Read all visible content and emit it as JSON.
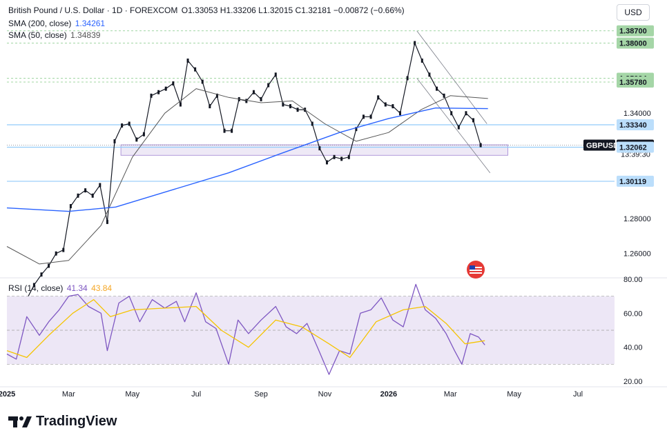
{
  "legend": {
    "symbol": "British Pound / U.S. Dollar · 1D · FOREXCOM",
    "ohlc": "O1.33053 H1.33206 L1.32015 C1.32181 −0.00872 (−0.66%)",
    "sma200_label": "SMA (200, close)",
    "sma200_value": "1.34261",
    "sma50_label": "SMA (50, close)",
    "sma50_value": "1.34839",
    "rsi_label": "RSI (14, close)",
    "rsi_value": "41.34",
    "rsi_ma_value": "43.84"
  },
  "currency_button": "USD",
  "logo_text": "TradingView",
  "colors": {
    "up": "#131722",
    "down": "#131722",
    "sma200": "#2962ff",
    "sma50": "#555555",
    "rsi": "#7e57c2",
    "rsi_ma": "#f5c400",
    "green_label": "#a5d6a7",
    "blue_label": "#bbdefb",
    "symbol_label": "#131722",
    "zone_fill": "#ede7f6"
  },
  "chart_data": {
    "type": "candlestick",
    "symbol": "GBPUSD",
    "y_axis": {
      "ticks": [
        1.26,
        1.28,
        1.3,
        1.32,
        1.34,
        1.36,
        1.38
      ],
      "tick_labels": [
        "1.26000",
        "1.28000",
        "",
        "",
        "1.34000",
        "",
        ""
      ]
    },
    "x_axis": {
      "ticks": [
        {
          "date": "2025-01-01",
          "label": "2025"
        },
        {
          "date": "2025-03-01",
          "label": "Mar"
        },
        {
          "date": "2025-05-01",
          "label": "May"
        },
        {
          "date": "2025-07-01",
          "label": "Jul"
        },
        {
          "date": "2025-09-01",
          "label": "Sep"
        },
        {
          "date": "2025-11-01",
          "label": "Nov"
        },
        {
          "date": "2026-01-01",
          "label": "2026"
        },
        {
          "date": "2026-03-01",
          "label": "Mar"
        },
        {
          "date": "2026-05-01",
          "label": "May"
        },
        {
          "date": "2026-07-01",
          "label": "Jul"
        }
      ],
      "range": [
        "2025-01-01",
        "2026-08-05"
      ]
    },
    "price_ylim": [
      1.2465,
      1.392
    ],
    "price_series": [
      {
        "date": "2025-01-13",
        "close": 1.22
      },
      {
        "date": "2025-01-20",
        "close": 1.234
      },
      {
        "date": "2025-01-27",
        "close": 1.242
      },
      {
        "date": "2025-02-03",
        "close": 1.248
      },
      {
        "date": "2025-02-10",
        "close": 1.253
      },
      {
        "date": "2025-02-17",
        "close": 1.26
      },
      {
        "date": "2025-02-24",
        "close": 1.262
      },
      {
        "date": "2025-03-03",
        "close": 1.287
      },
      {
        "date": "2025-03-10",
        "close": 1.293
      },
      {
        "date": "2025-03-17",
        "close": 1.296
      },
      {
        "date": "2025-03-24",
        "close": 1.293
      },
      {
        "date": "2025-03-31",
        "close": 1.299
      },
      {
        "date": "2025-04-07",
        "close": 1.278
      },
      {
        "date": "2025-04-14",
        "close": 1.324
      },
      {
        "date": "2025-04-21",
        "close": 1.333
      },
      {
        "date": "2025-04-28",
        "close": 1.334
      },
      {
        "date": "2025-05-05",
        "close": 1.325
      },
      {
        "date": "2025-05-12",
        "close": 1.328
      },
      {
        "date": "2025-05-19",
        "close": 1.35
      },
      {
        "date": "2025-05-26",
        "close": 1.352
      },
      {
        "date": "2025-06-02",
        "close": 1.354
      },
      {
        "date": "2025-06-09",
        "close": 1.357
      },
      {
        "date": "2025-06-16",
        "close": 1.345
      },
      {
        "date": "2025-06-23",
        "close": 1.37
      },
      {
        "date": "2025-06-30",
        "close": 1.365
      },
      {
        "date": "2025-07-07",
        "close": 1.358
      },
      {
        "date": "2025-07-14",
        "close": 1.344
      },
      {
        "date": "2025-07-21",
        "close": 1.35
      },
      {
        "date": "2025-07-28",
        "close": 1.33
      },
      {
        "date": "2025-08-04",
        "close": 1.33
      },
      {
        "date": "2025-08-11",
        "close": 1.348
      },
      {
        "date": "2025-08-18",
        "close": 1.347
      },
      {
        "date": "2025-08-25",
        "close": 1.352
      },
      {
        "date": "2025-09-01",
        "close": 1.348
      },
      {
        "date": "2025-09-08",
        "close": 1.356
      },
      {
        "date": "2025-09-15",
        "close": 1.362
      },
      {
        "date": "2025-09-22",
        "close": 1.345
      },
      {
        "date": "2025-09-29",
        "close": 1.344
      },
      {
        "date": "2025-10-06",
        "close": 1.342
      },
      {
        "date": "2025-10-13",
        "close": 1.342
      },
      {
        "date": "2025-10-20",
        "close": 1.334
      },
      {
        "date": "2025-10-27",
        "close": 1.32
      },
      {
        "date": "2025-11-03",
        "close": 1.312
      },
      {
        "date": "2025-11-10",
        "close": 1.315
      },
      {
        "date": "2025-11-17",
        "close": 1.314
      },
      {
        "date": "2025-11-24",
        "close": 1.315
      },
      {
        "date": "2025-12-01",
        "close": 1.331
      },
      {
        "date": "2025-12-08",
        "close": 1.338
      },
      {
        "date": "2025-12-15",
        "close": 1.338
      },
      {
        "date": "2025-12-22",
        "close": 1.349
      },
      {
        "date": "2025-12-29",
        "close": 1.345
      },
      {
        "date": "2026-01-05",
        "close": 1.344
      },
      {
        "date": "2026-01-12",
        "close": 1.34
      },
      {
        "date": "2026-01-19",
        "close": 1.36
      },
      {
        "date": "2026-01-26",
        "close": 1.38
      },
      {
        "date": "2026-02-02",
        "close": 1.37
      },
      {
        "date": "2026-02-09",
        "close": 1.362
      },
      {
        "date": "2026-02-16",
        "close": 1.354
      },
      {
        "date": "2026-02-23",
        "close": 1.35
      },
      {
        "date": "2026-03-02",
        "close": 1.34
      },
      {
        "date": "2026-03-09",
        "close": 1.332
      },
      {
        "date": "2026-03-16",
        "close": 1.34
      },
      {
        "date": "2026-03-23",
        "close": 1.336
      },
      {
        "date": "2026-03-30",
        "close": 1.3218
      }
    ],
    "sma200": {
      "name": "SMA (200, close)",
      "points": [
        {
          "date": "2025-01-01",
          "value": 1.286
        },
        {
          "date": "2025-03-01",
          "value": 1.284
        },
        {
          "date": "2025-04-15",
          "value": 1.2865
        },
        {
          "date": "2025-06-01",
          "value": 1.295
        },
        {
          "date": "2025-08-01",
          "value": 1.306
        },
        {
          "date": "2025-09-20",
          "value": 1.317
        },
        {
          "date": "2025-11-15",
          "value": 1.329
        },
        {
          "date": "2026-01-01",
          "value": 1.337
        },
        {
          "date": "2026-02-15",
          "value": 1.343
        },
        {
          "date": "2026-04-06",
          "value": 1.3426
        }
      ]
    },
    "sma50": {
      "name": "SMA (50, close)",
      "points": [
        {
          "date": "2025-01-01",
          "value": 1.264
        },
        {
          "date": "2025-02-01",
          "value": 1.254
        },
        {
          "date": "2025-03-01",
          "value": 1.256
        },
        {
          "date": "2025-04-01",
          "value": 1.276
        },
        {
          "date": "2025-05-01",
          "value": 1.315
        },
        {
          "date": "2025-06-01",
          "value": 1.34
        },
        {
          "date": "2025-07-01",
          "value": 1.354
        },
        {
          "date": "2025-08-01",
          "value": 1.349
        },
        {
          "date": "2025-09-01",
          "value": 1.346
        },
        {
          "date": "2025-10-01",
          "value": 1.347
        },
        {
          "date": "2025-11-01",
          "value": 1.334
        },
        {
          "date": "2025-12-01",
          "value": 1.324
        },
        {
          "date": "2026-01-01",
          "value": 1.329
        },
        {
          "date": "2026-02-01",
          "value": 1.342
        },
        {
          "date": "2026-03-01",
          "value": 1.35
        },
        {
          "date": "2026-04-06",
          "value": 1.3484
        }
      ]
    },
    "levels": [
      {
        "value": 1.387,
        "label": "1.38700",
        "style": "green"
      },
      {
        "value": 1.38,
        "label": "1.38000",
        "style": "green"
      },
      {
        "value": 1.35994,
        "label": "1.35994",
        "style": "green"
      },
      {
        "value": 1.3578,
        "label": "1.35780",
        "style": "green"
      },
      {
        "value": 1.3334,
        "label": "1.33340",
        "style": "blue"
      },
      {
        "value": 1.32181,
        "label": "1.32181",
        "style": "symbol",
        "name": "GBPUSD",
        "countdown": "13:39:30"
      },
      {
        "value": 1.32062,
        "label": "1.32062",
        "style": "blue"
      },
      {
        "value": 1.30119,
        "label": "1.30119",
        "style": "blue"
      }
    ],
    "support_zone": {
      "from": "2025-04-20",
      "to": "2026-04-25",
      "low": 1.316,
      "high": 1.322
    },
    "channel": {
      "upper": [
        {
          "date": "2026-01-28",
          "value": 1.387
        },
        {
          "date": "2026-04-05",
          "value": 1.334
        }
      ],
      "lower": [
        {
          "date": "2026-01-28",
          "value": 1.36
        },
        {
          "date": "2026-04-08",
          "value": 1.306
        }
      ]
    },
    "rsi": {
      "name": "RSI (14, close)",
      "ylim": [
        20,
        80
      ],
      "ticks": [
        {
          "value": 80,
          "label": "80.00"
        },
        {
          "value": 60,
          "label": "60.00"
        },
        {
          "value": 40,
          "label": "40.00"
        },
        {
          "value": 20,
          "label": "20.00"
        }
      ],
      "bands": [
        70,
        50,
        30
      ],
      "points": [
        {
          "date": "2025-01-01",
          "value": 36
        },
        {
          "date": "2025-01-10",
          "value": 33
        },
        {
          "date": "2025-01-20",
          "value": 58
        },
        {
          "date": "2025-02-01",
          "value": 47
        },
        {
          "date": "2025-02-10",
          "value": 55
        },
        {
          "date": "2025-02-20",
          "value": 62
        },
        {
          "date": "2025-03-01",
          "value": 70
        },
        {
          "date": "2025-03-10",
          "value": 71
        },
        {
          "date": "2025-03-20",
          "value": 64
        },
        {
          "date": "2025-04-01",
          "value": 60
        },
        {
          "date": "2025-04-07",
          "value": 38
        },
        {
          "date": "2025-04-18",
          "value": 66
        },
        {
          "date": "2025-04-28",
          "value": 70
        },
        {
          "date": "2025-05-08",
          "value": 55
        },
        {
          "date": "2025-05-20",
          "value": 68
        },
        {
          "date": "2025-06-01",
          "value": 63
        },
        {
          "date": "2025-06-12",
          "value": 67
        },
        {
          "date": "2025-06-20",
          "value": 55
        },
        {
          "date": "2025-07-01",
          "value": 72
        },
        {
          "date": "2025-07-10",
          "value": 55
        },
        {
          "date": "2025-07-20",
          "value": 51
        },
        {
          "date": "2025-08-01",
          "value": 30
        },
        {
          "date": "2025-08-10",
          "value": 56
        },
        {
          "date": "2025-08-20",
          "value": 48
        },
        {
          "date": "2025-09-01",
          "value": 56
        },
        {
          "date": "2025-09-15",
          "value": 64
        },
        {
          "date": "2025-09-25",
          "value": 52
        },
        {
          "date": "2025-10-05",
          "value": 48
        },
        {
          "date": "2025-10-15",
          "value": 54
        },
        {
          "date": "2025-10-25",
          "value": 40
        },
        {
          "date": "2025-11-05",
          "value": 24
        },
        {
          "date": "2025-11-15",
          "value": 38
        },
        {
          "date": "2025-11-25",
          "value": 36
        },
        {
          "date": "2025-12-05",
          "value": 60
        },
        {
          "date": "2025-12-15",
          "value": 62
        },
        {
          "date": "2025-12-25",
          "value": 69
        },
        {
          "date": "2026-01-05",
          "value": 56
        },
        {
          "date": "2026-01-15",
          "value": 52
        },
        {
          "date": "2026-01-27",
          "value": 77
        },
        {
          "date": "2026-02-05",
          "value": 62
        },
        {
          "date": "2026-02-15",
          "value": 57
        },
        {
          "date": "2026-02-25",
          "value": 48
        },
        {
          "date": "2026-03-05",
          "value": 38
        },
        {
          "date": "2026-03-12",
          "value": 30
        },
        {
          "date": "2026-03-20",
          "value": 48
        },
        {
          "date": "2026-03-28",
          "value": 46
        },
        {
          "date": "2026-04-03",
          "value": 41.34
        }
      ]
    },
    "rsi_ma": {
      "name": "RSI-based MA",
      "points": [
        {
          "date": "2025-01-01",
          "value": 38
        },
        {
          "date": "2025-01-20",
          "value": 34
        },
        {
          "date": "2025-02-10",
          "value": 47
        },
        {
          "date": "2025-03-05",
          "value": 60
        },
        {
          "date": "2025-03-25",
          "value": 68
        },
        {
          "date": "2025-04-10",
          "value": 58
        },
        {
          "date": "2025-05-01",
          "value": 62
        },
        {
          "date": "2025-06-01",
          "value": 63
        },
        {
          "date": "2025-07-01",
          "value": 64
        },
        {
          "date": "2025-07-25",
          "value": 50
        },
        {
          "date": "2025-08-20",
          "value": 40
        },
        {
          "date": "2025-09-15",
          "value": 56
        },
        {
          "date": "2025-10-10",
          "value": 52
        },
        {
          "date": "2025-11-05",
          "value": 42
        },
        {
          "date": "2025-11-25",
          "value": 34
        },
        {
          "date": "2025-12-20",
          "value": 55
        },
        {
          "date": "2026-01-15",
          "value": 62
        },
        {
          "date": "2026-02-05",
          "value": 64
        },
        {
          "date": "2026-02-25",
          "value": 54
        },
        {
          "date": "2026-03-15",
          "value": 42
        },
        {
          "date": "2026-04-03",
          "value": 43.84
        }
      ]
    }
  }
}
